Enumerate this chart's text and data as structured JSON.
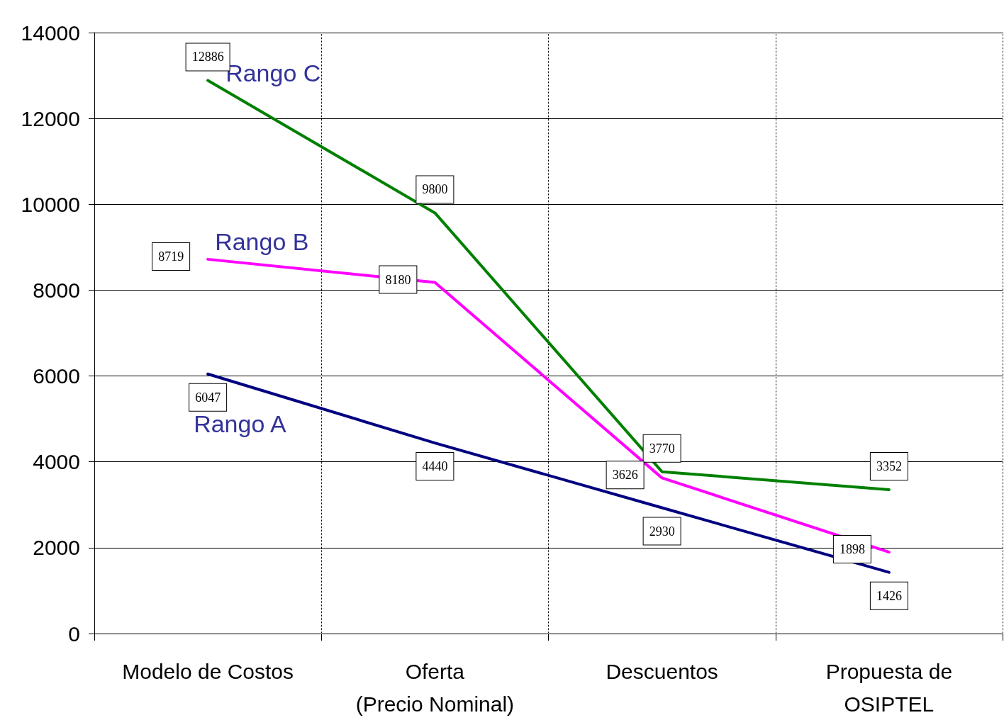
{
  "chart_data": {
    "type": "line",
    "categories": [
      "Modelo de Costos",
      "Oferta\n(Precio Nominal)",
      "Descuentos",
      "Propuesta de\nOSIPTEL"
    ],
    "series": [
      {
        "name": "Rango C",
        "color": "#008000",
        "values": [
          12886,
          9800,
          3770,
          3352
        ]
      },
      {
        "name": "Rango B",
        "color": "#ff00ff",
        "values": [
          8719,
          8180,
          3626,
          1898
        ]
      },
      {
        "name": "Rango A",
        "color": "#000080",
        "values": [
          6047,
          4440,
          2930,
          1426
        ]
      }
    ],
    "ylim": [
      0,
      14000
    ],
    "yticks": [
      0,
      2000,
      4000,
      6000,
      8000,
      10000,
      12000,
      14000
    ],
    "grid": true,
    "legend": false,
    "marker": "none",
    "line_style": "solid",
    "data_labels": true
  }
}
